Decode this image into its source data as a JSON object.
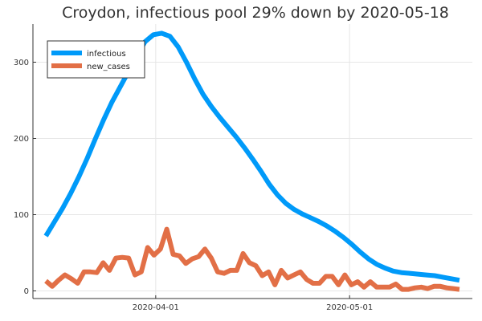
{
  "chart_data": {
    "type": "line",
    "title": "Croydon, infectious pool 29% down by 2020-05-18",
    "xlabel": "",
    "ylabel": "",
    "x_start": "2020-03-15",
    "x_end": "2020-05-18",
    "xlim": [
      "2020-03-13",
      "2020-05-20"
    ],
    "ylim": [
      -10,
      350
    ],
    "x_ticks": [
      {
        "date": "2020-04-01",
        "label": "2020-04-01"
      },
      {
        "date": "2020-05-01",
        "label": "2020-05-01"
      }
    ],
    "y_ticks": [
      {
        "value": 0,
        "label": "0"
      },
      {
        "value": 100,
        "label": "100"
      },
      {
        "value": 200,
        "label": "200"
      },
      {
        "value": 300,
        "label": "300"
      }
    ],
    "grid": true,
    "legend_position": "top-left",
    "series": [
      {
        "name": "infectious",
        "color": "#009AF9",
        "values": [
          72,
          90,
          108,
          128,
          150,
          174,
          200,
          225,
          248,
          268,
          288,
          308,
          327,
          336,
          338,
          334,
          320,
          300,
          278,
          258,
          242,
          228,
          215,
          202,
          188,
          173,
          157,
          140,
          126,
          115,
          107,
          101,
          96,
          91,
          85,
          78,
          70,
          61,
          51,
          42,
          35,
          30,
          26,
          24,
          23,
          22,
          21,
          20,
          18,
          16,
          14
        ]
      },
      {
        "name": "new_cases",
        "color": "#E26F46",
        "values": [
          13,
          6,
          14,
          21,
          16,
          10,
          25,
          25,
          24,
          37,
          27,
          43,
          44,
          43,
          21,
          25,
          57,
          47,
          55,
          81,
          48,
          46,
          36,
          42,
          45,
          55,
          43,
          25,
          23,
          27,
          27,
          49,
          37,
          33,
          20,
          25,
          8,
          27,
          17,
          21,
          25,
          15,
          10,
          10,
          19,
          19,
          8,
          21,
          8,
          12,
          5,
          12,
          5,
          5,
          5,
          9,
          2,
          2,
          4,
          5,
          3,
          6,
          6,
          4,
          3,
          2
        ]
      }
    ]
  }
}
